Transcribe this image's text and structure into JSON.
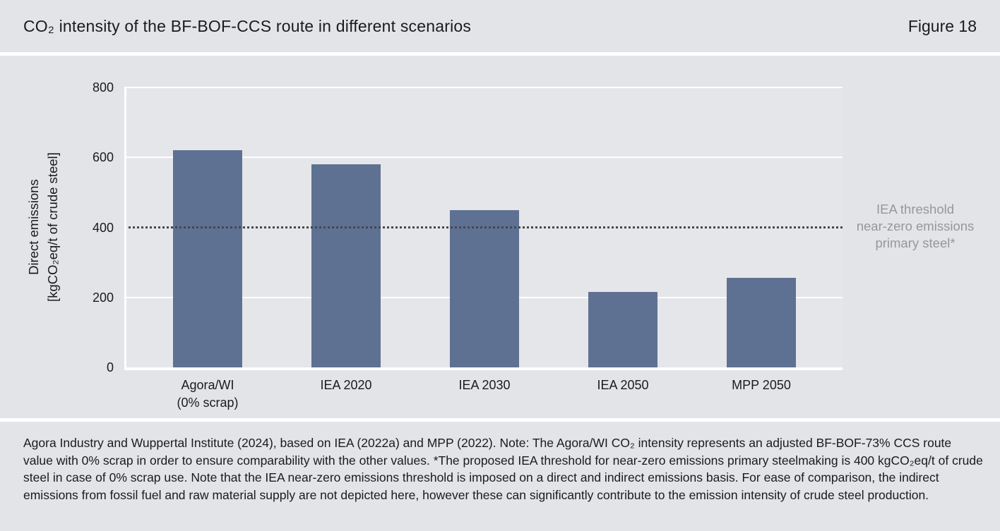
{
  "header": {
    "title": "CO₂ intensity of the BF-BOF-CCS route in different scenarios",
    "figure_label": "Figure 18"
  },
  "chart_data": {
    "type": "bar",
    "title": "CO₂ intensity of the BF-BOF-CCS route in different scenarios",
    "categories": [
      "Agora/WI\n(0% scrap)",
      "IEA 2020",
      "IEA 2030",
      "IEA 2050",
      "MPP 2050"
    ],
    "values": [
      620,
      580,
      450,
      215,
      255
    ],
    "xlabel": "",
    "ylabel_line1": "Direct emissions",
    "ylabel_line2": "[kgCO₂eq/t of crude steel]",
    "ylim": [
      0,
      800
    ],
    "yticks": [
      0,
      200,
      400,
      600,
      800
    ],
    "gridlines": [
      200,
      600,
      800
    ],
    "grid": "horizontal white gridlines on light grey panel",
    "legend": "none",
    "threshold": {
      "value": 400,
      "style": "dotted",
      "label_line1": "IEA threshold",
      "label_line2": "near-zero emissions",
      "label_line3": "primary steel*"
    }
  },
  "footer": {
    "source_note": "Agora Industry and Wuppertal Institute (2024), based on IEA (2022a) and MPP (2022). Note: The Agora/WI CO₂ intensity represents an adjusted BF-BOF-73% CCS route value with 0% scrap in order to ensure comparability with the other values. *The proposed IEA threshold for near-zero emissions primary steelmaking is 400 kgCO₂eq/t of crude steel in case of 0% scrap use. Note that the IEA near-zero emissions threshold is imposed on a direct and indirect emissions basis. For ease of comparison, the indirect emissions from fossil fuel and raw material supply are not depicted here, however these can significantly contribute to the emission intensity of crude steel production."
  },
  "colors": {
    "background": "#e3e4e8",
    "plot_bg": "#e5e6e9",
    "bar": "#5e7192",
    "gridline": "#ffffff",
    "threshold_line": "#46474b",
    "annotation_text": "#96979b",
    "text": "#1b1b1b",
    "white_strip": "#ffffff"
  }
}
